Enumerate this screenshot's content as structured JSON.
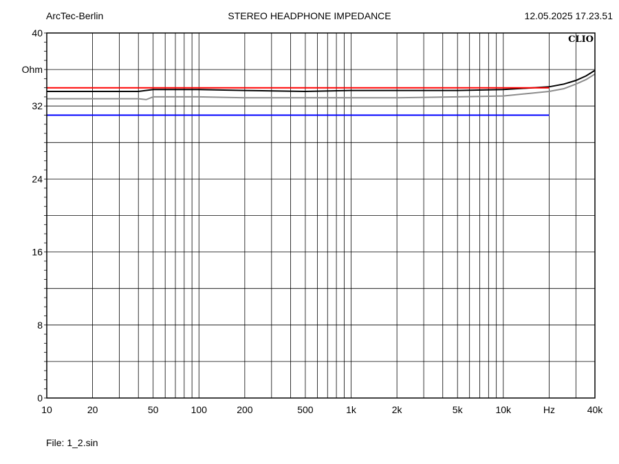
{
  "header": {
    "left": "ArcTec-Berlin",
    "title": "STEREO HEADPHONE IMPEDANCE",
    "datetime": "12.05.2025 17.23.51"
  },
  "footer": {
    "file": "File: 1_2.sin"
  },
  "chart_data": {
    "type": "line",
    "title": "STEREO HEADPHONE IMPEDANCE",
    "watermark": "CLIO",
    "xscale": "log",
    "xlim": [
      10,
      40000
    ],
    "ylim": [
      0,
      40
    ],
    "xunit_label": "Hz",
    "yunit_label": "Ohm",
    "grid": true,
    "x_ticks": [
      {
        "value": 10,
        "label": "10"
      },
      {
        "value": 20,
        "label": "20"
      },
      {
        "value": 50,
        "label": "50"
      },
      {
        "value": 100,
        "label": "100"
      },
      {
        "value": 200,
        "label": "200"
      },
      {
        "value": 500,
        "label": "500"
      },
      {
        "value": 1000,
        "label": "1k"
      },
      {
        "value": 2000,
        "label": "2k"
      },
      {
        "value": 5000,
        "label": "5k"
      },
      {
        "value": 10000,
        "label": "10k"
      },
      {
        "value": 40000,
        "label": "40k"
      }
    ],
    "y_ticks": [
      {
        "value": 0,
        "label": "0"
      },
      {
        "value": 8,
        "label": "8"
      },
      {
        "value": 16,
        "label": "16"
      },
      {
        "value": 24,
        "label": "24"
      },
      {
        "value": 32,
        "label": "32"
      },
      {
        "value": 40,
        "label": "40"
      }
    ],
    "series": [
      {
        "color": "#000000",
        "x": [
          10,
          20,
          40,
          50,
          100,
          200,
          500,
          1000,
          2000,
          5000,
          10000,
          20000,
          25000,
          30000,
          35000,
          40000
        ],
        "y": [
          33.6,
          33.6,
          33.6,
          33.8,
          33.8,
          33.7,
          33.6,
          33.7,
          33.7,
          33.7,
          33.8,
          34.1,
          34.4,
          34.8,
          35.3,
          35.9
        ]
      },
      {
        "color": "#8c8c8c",
        "x": [
          10,
          20,
          40,
          45,
          50,
          100,
          200,
          500,
          1000,
          2000,
          5000,
          10000,
          20000,
          25000,
          30000,
          35000,
          40000
        ],
        "y": [
          32.8,
          32.8,
          32.8,
          32.7,
          33.0,
          33.0,
          32.9,
          32.9,
          32.9,
          32.9,
          33.0,
          33.1,
          33.6,
          33.9,
          34.4,
          34.9,
          35.5
        ]
      },
      {
        "color": "#ff0000",
        "x": [
          10,
          20000
        ],
        "y": [
          34.0,
          34.0
        ]
      },
      {
        "color": "#0000ff",
        "x": [
          10,
          20000
        ],
        "y": [
          31.0,
          31.0
        ]
      }
    ]
  }
}
